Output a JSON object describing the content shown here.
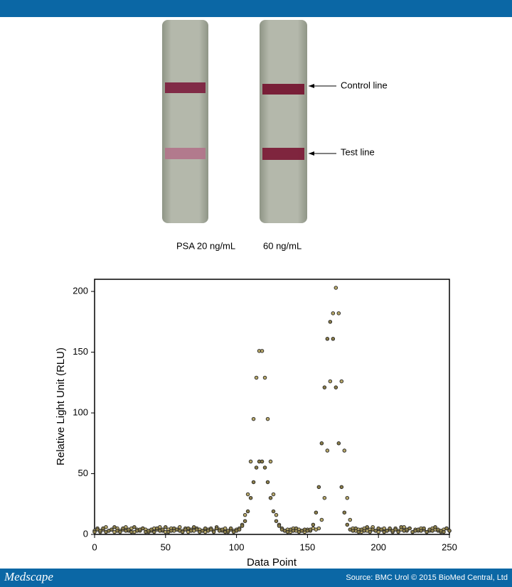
{
  "figure": {
    "strip_labels": [
      "PSA 20 ng/mL",
      "60 ng/mL"
    ],
    "line_labels": [
      "Control line",
      "Test line"
    ]
  },
  "chart_data": {
    "type": "scatter",
    "xlabel": "Data Point",
    "ylabel": "Relative Light Unit (RLU)",
    "x": [
      0,
      2,
      4,
      6,
      8,
      10,
      12,
      14,
      16,
      18,
      20,
      22,
      24,
      26,
      28,
      30,
      32,
      34,
      36,
      38,
      40,
      42,
      44,
      46,
      48,
      50,
      52,
      54,
      56,
      58,
      60,
      62,
      64,
      66,
      68,
      70,
      72,
      74,
      76,
      78,
      80,
      82,
      84,
      86,
      88,
      90,
      92,
      94,
      96,
      98,
      100,
      102,
      104,
      106,
      108,
      110,
      112,
      114,
      116,
      118,
      120,
      122,
      124,
      126,
      128,
      130,
      132,
      134,
      136,
      138,
      140,
      142,
      144,
      146,
      148,
      150,
      152,
      154,
      156,
      158,
      160,
      162,
      164,
      166,
      168,
      170,
      172,
      174,
      176,
      178,
      180,
      182,
      184,
      186,
      188,
      190,
      192,
      194,
      196,
      198,
      200,
      202,
      204,
      206,
      208,
      210,
      212,
      214,
      216,
      218,
      220,
      222,
      224,
      226,
      228,
      230,
      232,
      234,
      236,
      238,
      240,
      242,
      244,
      246,
      248,
      250
    ],
    "series": [
      {
        "color": "#b8a86a",
        "values": [
          3,
          5,
          2,
          4,
          6,
          3,
          4,
          2,
          5,
          3,
          4,
          6,
          3,
          5,
          2,
          4,
          3,
          5,
          4,
          2,
          3,
          5,
          4,
          6,
          3,
          2,
          4,
          5,
          3,
          4,
          6,
          3,
          5,
          2,
          4,
          3,
          5,
          4,
          3,
          2,
          4,
          5,
          3,
          6,
          4,
          3,
          5,
          2,
          4,
          3,
          4,
          5,
          8,
          16,
          33,
          60,
          95,
          129,
          151,
          151,
          129,
          95,
          60,
          33,
          16,
          8,
          5,
          3,
          4,
          2,
          5,
          3,
          4,
          3,
          2,
          4,
          3,
          5,
          4,
          5,
          12,
          30,
          69,
          126,
          182,
          203,
          182,
          126,
          69,
          30,
          12,
          5,
          3,
          4,
          2,
          5,
          3,
          4,
          6,
          3,
          2,
          4,
          5,
          3,
          4,
          2,
          5,
          3,
          4,
          6,
          3,
          5,
          2,
          4,
          3,
          5,
          4,
          2,
          3,
          5,
          4,
          3,
          2,
          4,
          5,
          3
        ]
      },
      {
        "color": "#8a7d4a",
        "values": [
          2,
          4,
          3,
          5,
          2,
          3,
          4,
          6,
          3,
          2,
          5,
          3,
          4,
          2,
          6,
          3,
          4,
          5,
          2,
          3,
          4,
          2,
          5,
          3,
          4,
          6,
          2,
          3,
          5,
          4,
          3,
          2,
          4,
          5,
          3,
          6,
          4,
          2,
          3,
          5,
          3,
          4,
          2,
          5,
          3,
          4,
          2,
          3,
          5,
          2,
          3,
          4,
          7,
          11,
          19,
          30,
          43,
          55,
          60,
          60,
          55,
          43,
          30,
          19,
          11,
          7,
          4,
          3,
          2,
          4,
          3,
          5,
          2,
          3,
          4,
          3,
          4,
          8,
          18,
          39,
          75,
          121,
          161,
          175,
          161,
          121,
          75,
          39,
          18,
          8,
          4,
          3,
          5,
          2,
          4,
          3,
          6,
          2,
          4,
          3,
          5,
          4,
          2,
          3,
          5,
          3,
          4,
          2,
          6,
          3,
          4,
          5,
          2,
          3,
          4,
          3,
          5,
          2,
          4,
          3,
          6,
          4,
          3,
          2,
          5,
          3
        ]
      }
    ],
    "xlim": [
      0,
      250
    ],
    "xticks": [
      0,
      50,
      100,
      150,
      200,
      250
    ],
    "ylim": [
      0,
      210
    ],
    "yticks": [
      0,
      50,
      100,
      150,
      200
    ]
  },
  "footer": {
    "brand": "Medscape",
    "source": "Source: BMC Urol © 2015 BioMed Central, Ltd"
  }
}
